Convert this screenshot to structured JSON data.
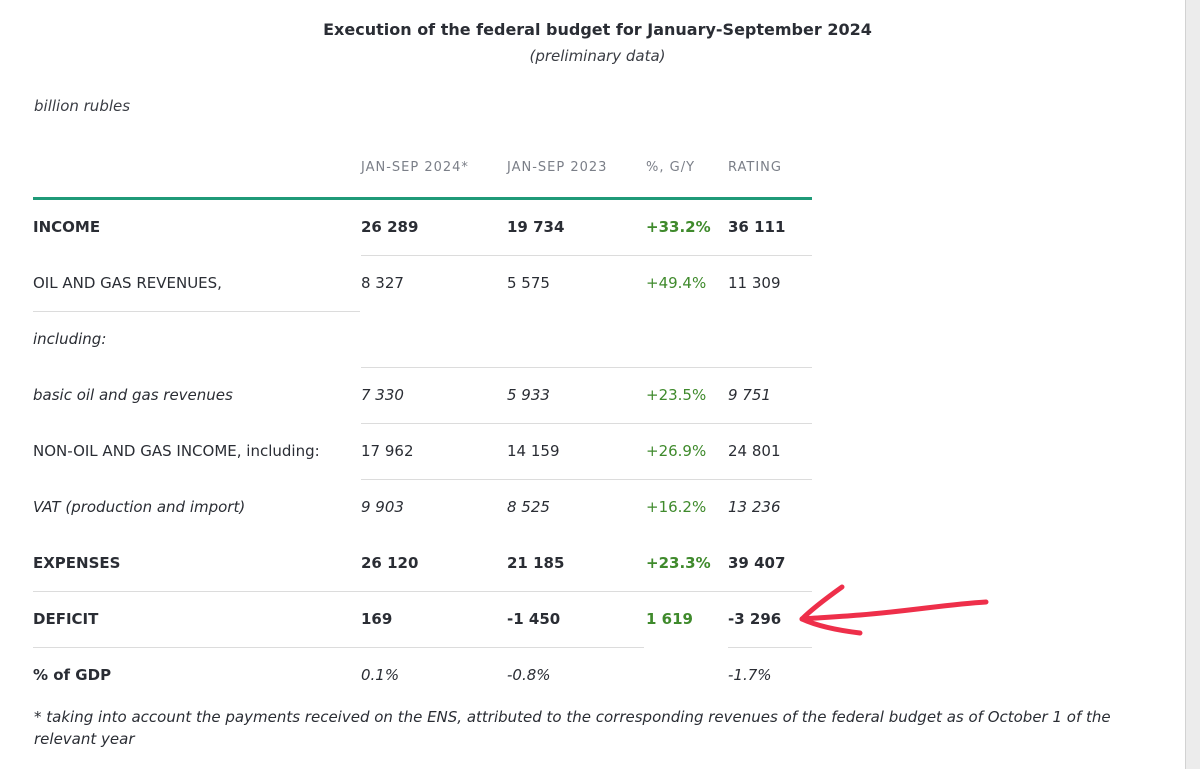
{
  "document": {
    "title": "Execution of the federal budget for January-September 2024",
    "subtitle": "(preliminary data)",
    "units": "billion rubles",
    "columns": [
      "JAN-SEP 2024*",
      "JAN-SEP 2023",
      "%, G/Y",
      "RATING"
    ],
    "rows": [
      {
        "label": "INCOME",
        "c2024": "26 289",
        "c2023": "19 734",
        "pct": "+33.2%",
        "rating": "36 111"
      },
      {
        "label": "OIL AND GAS REVENUES,",
        "c2024": "8 327",
        "c2023": "5 575",
        "pct": "+49.4%",
        "rating": "11 309"
      },
      {
        "label": "including:",
        "c2024": "",
        "c2023": "",
        "pct": "",
        "rating": ""
      },
      {
        "label": "basic oil and gas revenues",
        "c2024": "7 330",
        "c2023": "5 933",
        "pct": "+23.5%",
        "rating": "9 751"
      },
      {
        "label": "NON-OIL AND GAS INCOME, including:",
        "c2024": "17 962",
        "c2023": "14 159",
        "pct": "+26.9%",
        "rating": "24 801"
      },
      {
        "label": "VAT (production and import)",
        "c2024": "9 903",
        "c2023": "8 525",
        "pct": "+16.2%",
        "rating": "13 236"
      },
      {
        "label": "EXPENSES",
        "c2024": "26 120",
        "c2023": "21 185",
        "pct": "+23.3%",
        "rating": "39 407"
      },
      {
        "label": "DEFICIT",
        "c2024": "169",
        "c2023": "-1 450",
        "pct": "1 619",
        "rating": "-3 296"
      },
      {
        "label": "% of GDP",
        "c2024": "0.1%",
        "c2023": "-0.8%",
        "pct": "",
        "rating": "-1.7%"
      }
    ],
    "footnote": "* taking into account the payments received on the ENS, attributed to the corresponding revenues of the federal budget as of October 1 of the relevant year"
  },
  "colors": {
    "accent_rule": "#1f9a78",
    "positive_pct": "#3f8a2c",
    "annotation_arrow": "#ee2f4a"
  }
}
